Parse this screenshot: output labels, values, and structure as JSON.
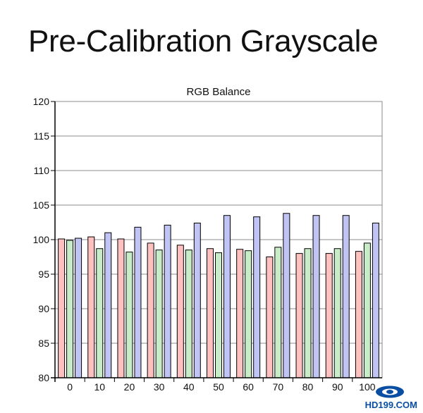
{
  "page_title": "Pre-Calibration Grayscale",
  "chart_data": {
    "type": "bar",
    "title": "RGB Balance",
    "xlabel": "",
    "ylabel": "",
    "categories": [
      "0",
      "10",
      "20",
      "30",
      "40",
      "50",
      "60",
      "70",
      "80",
      "90",
      "100"
    ],
    "series": [
      {
        "color": "#ffc0c0",
        "values": [
          100.1,
          100.4,
          100.1,
          99.5,
          99.2,
          98.7,
          98.6,
          97.5,
          98.0,
          98.0,
          98.3
        ]
      },
      {
        "color": "#c8ecc8",
        "values": [
          99.9,
          98.7,
          98.2,
          98.5,
          98.5,
          98.1,
          98.4,
          98.9,
          98.7,
          98.7,
          99.5
        ]
      },
      {
        "color": "#c0c4f4",
        "values": [
          100.2,
          101.0,
          101.8,
          102.1,
          102.4,
          103.5,
          103.3,
          103.8,
          103.5,
          103.5,
          102.4
        ]
      }
    ],
    "ylim": [
      80,
      120
    ],
    "yticks": [
      80,
      85,
      90,
      95,
      100,
      105,
      110,
      115,
      120
    ],
    "grid": {
      "horizontal": true,
      "vertical": false
    },
    "legend": "none"
  },
  "watermark": {
    "text": "HD199.COM",
    "color": "#0a4ea3"
  }
}
